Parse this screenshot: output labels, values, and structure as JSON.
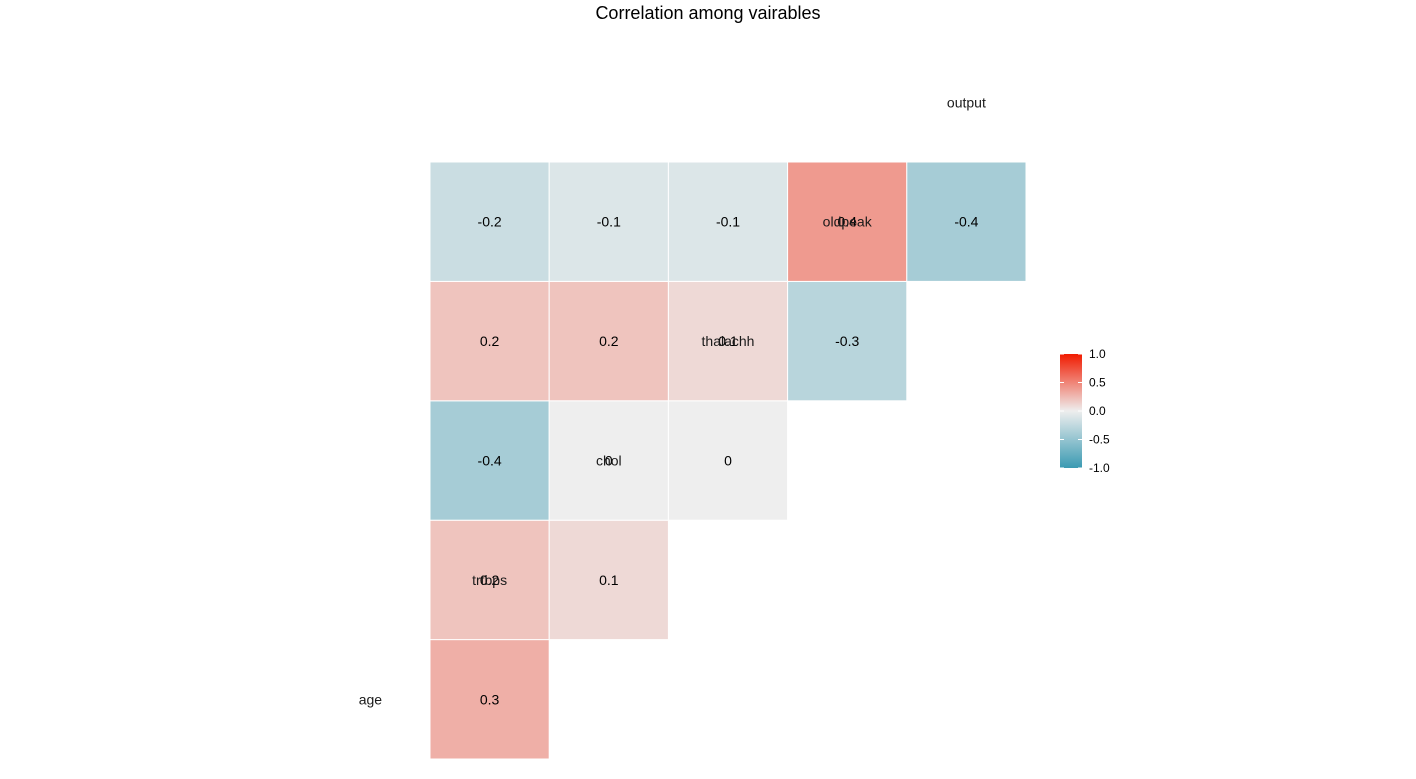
{
  "chart_data": {
    "type": "heatmap",
    "title": "Correlation among vairables",
    "variables": [
      "age",
      "trtbps",
      "chol",
      "thalachh",
      "oldpeak",
      "output"
    ],
    "cells": [
      {
        "row": "trtbps",
        "col": "age",
        "value": 0.3,
        "label": "0.3"
      },
      {
        "row": "chol",
        "col": "age",
        "value": 0.2,
        "label": "0.2"
      },
      {
        "row": "chol",
        "col": "trtbps",
        "value": 0.1,
        "label": "0.1"
      },
      {
        "row": "thalachh",
        "col": "age",
        "value": -0.4,
        "label": "-0.4"
      },
      {
        "row": "thalachh",
        "col": "trtbps",
        "value": 0.0,
        "label": "0"
      },
      {
        "row": "thalachh",
        "col": "chol",
        "value": 0.0,
        "label": "0"
      },
      {
        "row": "oldpeak",
        "col": "age",
        "value": 0.2,
        "label": "0.2"
      },
      {
        "row": "oldpeak",
        "col": "trtbps",
        "value": 0.2,
        "label": "0.2"
      },
      {
        "row": "oldpeak",
        "col": "chol",
        "value": 0.1,
        "label": "0.1"
      },
      {
        "row": "oldpeak",
        "col": "thalachh",
        "value": -0.3,
        "label": "-0.3"
      },
      {
        "row": "output",
        "col": "age",
        "value": -0.2,
        "label": "-0.2"
      },
      {
        "row": "output",
        "col": "trtbps",
        "value": -0.1,
        "label": "-0.1"
      },
      {
        "row": "output",
        "col": "chol",
        "value": -0.1,
        "label": "-0.1"
      },
      {
        "row": "output",
        "col": "thalachh",
        "value": 0.4,
        "label": "0.4"
      },
      {
        "row": "output",
        "col": "oldpeak",
        "value": -0.4,
        "label": "-0.4"
      }
    ],
    "color_scale": {
      "low": "#3A9AB2",
      "mid": "#EEEEEE",
      "high": "#F11B00",
      "limits": [
        -1.0,
        1.0
      ]
    },
    "legend": {
      "position": "right",
      "ticks": [
        "1.0",
        "0.5",
        "0.0",
        "-0.5",
        "-1.0"
      ]
    },
    "grid": false
  }
}
